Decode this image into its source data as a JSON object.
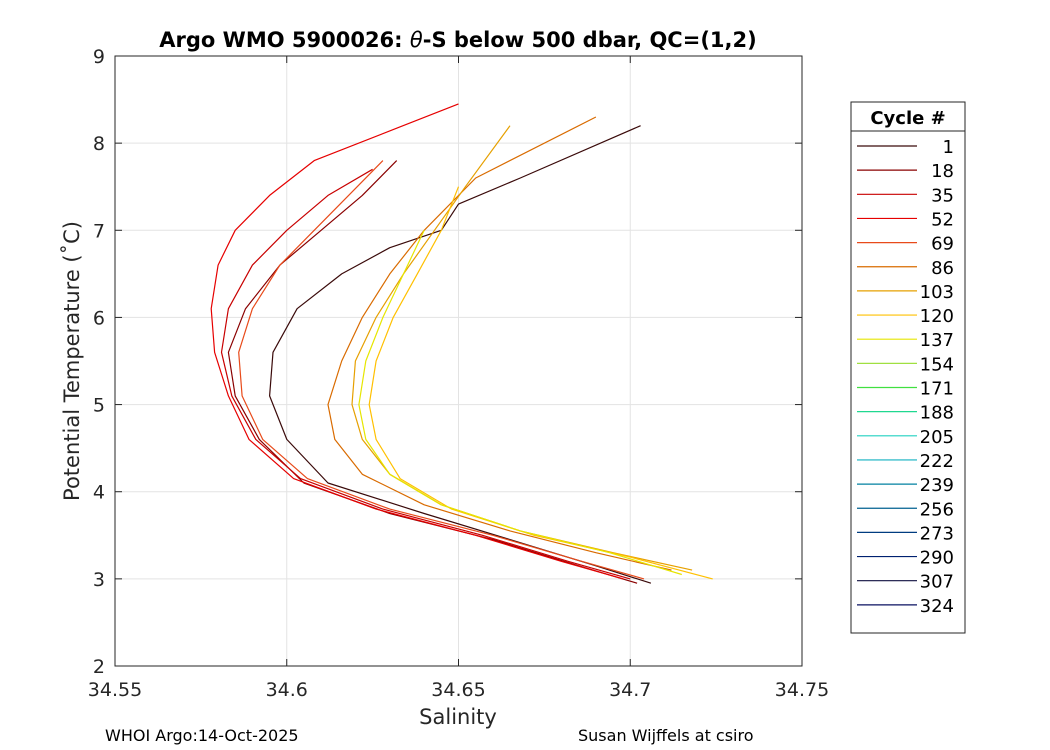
{
  "chart_data": {
    "type": "line",
    "title_prefix": "Argo WMO 5900026: ",
    "title_theta": "θ",
    "title_suffix": "-S below 500 dbar,  QC=(1,2)",
    "xlabel": "Salinity",
    "ylabel": "Potential Temperature (˚C)",
    "xlim": [
      34.55,
      34.75
    ],
    "ylim": [
      2,
      9
    ],
    "xticks": [
      34.55,
      34.6,
      34.65,
      34.7,
      34.75
    ],
    "xtick_labels": [
      "34.55",
      "34.6",
      "34.65",
      "34.7",
      "34.75"
    ],
    "yticks": [
      2,
      3,
      4,
      5,
      6,
      7,
      8,
      9
    ],
    "ytick_labels": [
      "2",
      "3",
      "4",
      "5",
      "6",
      "7",
      "8",
      "9"
    ],
    "grid": true,
    "legend": {
      "title": "Cycle #",
      "placement": "outside-right",
      "entries": [
        {
          "label": "1",
          "color": "#3a0a0a"
        },
        {
          "label": "18",
          "color": "#8a0000"
        },
        {
          "label": "35",
          "color": "#c80000"
        },
        {
          "label": "52",
          "color": "#e60000"
        },
        {
          "label": "69",
          "color": "#e84a1a"
        },
        {
          "label": "86",
          "color": "#d96b00"
        },
        {
          "label": "103",
          "color": "#e6a000"
        },
        {
          "label": "120",
          "color": "#ffc000"
        },
        {
          "label": "137",
          "color": "#e6e600"
        },
        {
          "label": "154",
          "color": "#a0e040"
        },
        {
          "label": "171",
          "color": "#40e040"
        },
        {
          "label": "188",
          "color": "#20d890"
        },
        {
          "label": "205",
          "color": "#20d0c0"
        },
        {
          "label": "222",
          "color": "#10b0c0"
        },
        {
          "label": "239",
          "color": "#0080a0"
        },
        {
          "label": "256",
          "color": "#006090"
        },
        {
          "label": "273",
          "color": "#003c80"
        },
        {
          "label": "290",
          "color": "#002070"
        },
        {
          "label": "307",
          "color": "#101040"
        },
        {
          "label": "324",
          "color": "#0a1060"
        }
      ]
    },
    "series": [
      {
        "name": "1",
        "color": "#3a0a0a",
        "s": [
          34.706,
          34.69,
          34.665,
          34.64,
          34.612,
          34.6,
          34.595,
          34.596,
          34.603,
          34.616,
          34.63,
          34.645,
          34.65,
          34.668,
          34.703
        ],
        "t": [
          2.95,
          3.15,
          3.45,
          3.75,
          4.1,
          4.6,
          5.1,
          5.6,
          6.1,
          6.5,
          6.8,
          7.0,
          7.3,
          7.6,
          8.2
        ]
      },
      {
        "name": "18",
        "color": "#8a0000",
        "s": [
          34.702,
          34.685,
          34.66,
          34.63,
          34.605,
          34.592,
          34.585,
          34.583,
          34.588,
          34.598,
          34.61,
          34.622,
          34.632
        ],
        "t": [
          2.95,
          3.15,
          3.45,
          3.75,
          4.1,
          4.6,
          5.1,
          5.6,
          6.1,
          6.6,
          7.0,
          7.4,
          7.8
        ]
      },
      {
        "name": "35",
        "color": "#c80000",
        "s": [
          34.7,
          34.682,
          34.657,
          34.628,
          34.604,
          34.591,
          34.584,
          34.581,
          34.583,
          34.59,
          34.6,
          34.612,
          34.625
        ],
        "t": [
          3.0,
          3.2,
          3.5,
          3.8,
          4.15,
          4.6,
          5.1,
          5.6,
          6.1,
          6.6,
          7.0,
          7.4,
          7.7
        ]
      },
      {
        "name": "52",
        "color": "#e60000",
        "s": [
          34.698,
          34.68,
          34.655,
          34.626,
          34.602,
          34.589,
          34.583,
          34.579,
          34.578,
          34.58,
          34.585,
          34.595,
          34.608,
          34.65
        ],
        "t": [
          3.0,
          3.2,
          3.5,
          3.8,
          4.15,
          4.6,
          5.1,
          5.6,
          6.1,
          6.6,
          7.0,
          7.4,
          7.8,
          8.45
        ]
      },
      {
        "name": "69",
        "color": "#e84a1a",
        "s": [
          34.704,
          34.686,
          34.66,
          34.63,
          34.606,
          34.593,
          34.587,
          34.586,
          34.59,
          34.598,
          34.608,
          34.618,
          34.628
        ],
        "t": [
          3.0,
          3.2,
          3.5,
          3.8,
          4.15,
          4.6,
          5.1,
          5.6,
          6.1,
          6.6,
          7.0,
          7.4,
          7.8
        ]
      },
      {
        "name": "86",
        "color": "#d96b00",
        "s": [
          34.712,
          34.69,
          34.665,
          34.64,
          34.622,
          34.614,
          34.612,
          34.616,
          34.622,
          34.63,
          34.64,
          34.655,
          34.69
        ],
        "t": [
          3.1,
          3.3,
          3.55,
          3.85,
          4.2,
          4.6,
          5.0,
          5.5,
          6.0,
          6.5,
          7.0,
          7.6,
          8.3
        ]
      },
      {
        "name": "103",
        "color": "#e6a000",
        "s": [
          34.718,
          34.695,
          34.668,
          34.645,
          34.63,
          34.622,
          34.619,
          34.62,
          34.626,
          34.634,
          34.643,
          34.652,
          34.665
        ],
        "t": [
          3.1,
          3.3,
          3.55,
          3.85,
          4.2,
          4.6,
          5.0,
          5.5,
          6.0,
          6.5,
          7.0,
          7.5,
          8.2
        ]
      },
      {
        "name": "120",
        "color": "#ffc000",
        "s": [
          34.724,
          34.7,
          34.672,
          34.648,
          34.633,
          34.626,
          34.624,
          34.626,
          34.631,
          34.638,
          34.645,
          34.65
        ],
        "t": [
          3.0,
          3.25,
          3.5,
          3.8,
          4.15,
          4.6,
          5.0,
          5.5,
          6.0,
          6.5,
          7.0,
          7.5
        ]
      },
      {
        "name": "137",
        "color": "#e6e600",
        "s": [
          34.715,
          34.694,
          34.668,
          34.645,
          34.63,
          34.623,
          34.621,
          34.623,
          34.628,
          34.634,
          34.64
        ],
        "t": [
          3.05,
          3.3,
          3.55,
          3.85,
          4.2,
          4.6,
          5.0,
          5.5,
          6.0,
          6.5,
          7.0
        ]
      }
    ]
  },
  "footer": {
    "left": "WHOI Argo:14-Oct-2025",
    "right": "Susan Wijffels at csiro"
  }
}
